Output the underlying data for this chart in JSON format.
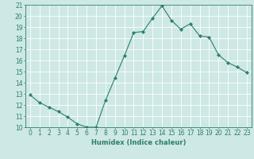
{
  "x": [
    0,
    1,
    2,
    3,
    4,
    5,
    6,
    7,
    8,
    9,
    10,
    11,
    12,
    13,
    14,
    15,
    16,
    17,
    18,
    19,
    20,
    21,
    22,
    23
  ],
  "y": [
    12.9,
    12.2,
    11.8,
    11.4,
    10.9,
    10.3,
    10.0,
    10.0,
    12.4,
    14.4,
    16.4,
    18.5,
    18.6,
    19.8,
    20.9,
    19.6,
    18.8,
    19.3,
    18.2,
    18.1,
    16.5,
    15.8,
    15.4,
    14.9
  ],
  "line_color": "#2e7d6e",
  "marker": "D",
  "markersize": 2.0,
  "linewidth": 0.8,
  "xlabel": "Humidex (Indice chaleur)",
  "xlim": [
    -0.5,
    23.5
  ],
  "ylim": [
    10,
    21
  ],
  "yticks": [
    10,
    11,
    12,
    13,
    14,
    15,
    16,
    17,
    18,
    19,
    20,
    21
  ],
  "xticks": [
    0,
    1,
    2,
    3,
    4,
    5,
    6,
    7,
    8,
    9,
    10,
    11,
    12,
    13,
    14,
    15,
    16,
    17,
    18,
    19,
    20,
    21,
    22,
    23
  ],
  "bg_color": "#cde8e5",
  "grid_color": "#ffffff",
  "tick_color": "#2e7d6e",
  "label_color": "#2e7d6e",
  "xlabel_fontsize": 6.0,
  "tick_fontsize": 5.5
}
